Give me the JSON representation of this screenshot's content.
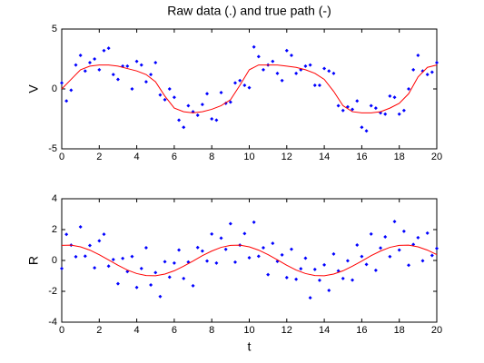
{
  "chart_data": [
    {
      "type": "scatter",
      "title": "Raw data (.) and true path (-)",
      "ylabel": "V",
      "xlim": [
        0,
        20
      ],
      "xticks": [
        0,
        2,
        4,
        6,
        8,
        10,
        12,
        14,
        16,
        18,
        20
      ],
      "ylim": [
        -5,
        5
      ],
      "yticks": [
        -5,
        0,
        5
      ],
      "grid": false,
      "series": [
        {
          "type": "scatter",
          "color": "#0000ff",
          "x": [
            0,
            0.25,
            0.5,
            0.75,
            1,
            1.25,
            1.5,
            1.75,
            2,
            2.25,
            2.5,
            2.75,
            3,
            3.25,
            3.5,
            3.75,
            4,
            4.25,
            4.5,
            4.75,
            5,
            5.25,
            5.5,
            5.75,
            6,
            6.25,
            6.5,
            6.75,
            7,
            7.25,
            7.5,
            7.75,
            8,
            8.25,
            8.5,
            8.75,
            9,
            9.25,
            9.5,
            9.75,
            10,
            10.25,
            10.5,
            10.75,
            11,
            11.25,
            11.5,
            11.75,
            12,
            12.25,
            12.5,
            12.75,
            13,
            13.25,
            13.5,
            13.75,
            14,
            14.25,
            14.5,
            14.75,
            15,
            15.25,
            15.5,
            15.75,
            16,
            16.25,
            16.5,
            16.75,
            17,
            17.25,
            17.5,
            17.75,
            18,
            18.25,
            18.5,
            18.75,
            19,
            19.25,
            19.5,
            19.75,
            20
          ],
          "values": [
            0.5,
            -1.0,
            -0.1,
            2.0,
            2.8,
            1.5,
            2.2,
            2.5,
            1.6,
            3.2,
            3.4,
            1.2,
            0.8,
            1.9,
            1.9,
            0.0,
            2.3,
            2.0,
            0.6,
            1.2,
            2.2,
            -0.5,
            -0.9,
            0.0,
            -0.7,
            -2.6,
            -3.2,
            -1.4,
            -1.9,
            -2.2,
            -1.3,
            -0.4,
            -2.5,
            -2.6,
            -0.3,
            -1.2,
            -1.1,
            0.5,
            0.7,
            0.3,
            0.1,
            3.5,
            2.7,
            1.6,
            2.0,
            2.3,
            1.3,
            0.7,
            3.2,
            2.8,
            1.3,
            1.6,
            1.9,
            2.0,
            0.3,
            0.3,
            1.7,
            1.5,
            1.3,
            -1.4,
            -1.8,
            -1.5,
            -1.7,
            -1.0,
            -3.2,
            -3.5,
            -1.4,
            -1.6,
            -2.0,
            -2.1,
            -0.6,
            -0.7,
            -2.1,
            -1.8,
            0.0,
            1.6,
            2.8,
            1.5,
            1.2,
            1.4,
            2.2
          ]
        },
        {
          "type": "line",
          "color": "#ff0000",
          "x": [
            0,
            0.5,
            1,
            1.5,
            2,
            2.5,
            3,
            3.5,
            4,
            4.5,
            5,
            5.5,
            6,
            6.5,
            7,
            7.5,
            8,
            8.5,
            9,
            9.5,
            10,
            10.5,
            11,
            11.5,
            12,
            12.5,
            13,
            13.5,
            14,
            14.5,
            15,
            15.5,
            16,
            16.5,
            17,
            17.5,
            18,
            18.5,
            19,
            19.5,
            20
          ],
          "values": [
            0.0,
            0.8,
            1.6,
            1.9,
            2.0,
            2.0,
            1.9,
            1.7,
            1.5,
            1.2,
            0.6,
            -0.6,
            -1.6,
            -1.9,
            -2.0,
            -1.9,
            -1.7,
            -1.4,
            -0.9,
            0.3,
            1.6,
            2.0,
            2.0,
            2.0,
            1.9,
            1.8,
            1.6,
            1.3,
            0.8,
            -0.2,
            -1.4,
            -1.9,
            -2.0,
            -2.0,
            -1.9,
            -1.6,
            -1.2,
            -0.4,
            1.0,
            1.8,
            2.0
          ]
        }
      ]
    },
    {
      "type": "scatter",
      "ylabel": "R",
      "xlabel": "t",
      "xlim": [
        0,
        20
      ],
      "xticks": [
        0,
        2,
        4,
        6,
        8,
        10,
        12,
        14,
        16,
        18,
        20
      ],
      "ylim": [
        -4,
        4
      ],
      "yticks": [
        -4,
        -2,
        0,
        2,
        4
      ],
      "grid": false,
      "series": [
        {
          "type": "scatter",
          "color": "#0000ff",
          "x": [
            0,
            0.25,
            0.5,
            0.75,
            1,
            1.25,
            1.5,
            1.75,
            2,
            2.25,
            2.5,
            2.75,
            3,
            3.25,
            3.5,
            3.75,
            4,
            4.25,
            4.5,
            4.75,
            5,
            5.25,
            5.5,
            5.75,
            6,
            6.25,
            6.5,
            6.75,
            7,
            7.25,
            7.5,
            7.75,
            8,
            8.25,
            8.5,
            8.75,
            9,
            9.25,
            9.5,
            9.75,
            10,
            10.25,
            10.5,
            10.75,
            11,
            11.25,
            11.5,
            11.75,
            12,
            12.25,
            12.5,
            12.75,
            13,
            13.25,
            13.5,
            13.75,
            14,
            14.25,
            14.5,
            14.75,
            15,
            15.25,
            15.5,
            15.75,
            16,
            16.25,
            16.5,
            16.75,
            17,
            17.25,
            17.5,
            17.75,
            18,
            18.25,
            18.5,
            18.75,
            19,
            19.25,
            19.5,
            19.75,
            20
          ],
          "values": [
            -0.52,
            1.69,
            0.99,
            0.24,
            2.18,
            0.28,
            0.97,
            -0.48,
            1.27,
            1.7,
            -0.37,
            0.06,
            -1.51,
            0.13,
            -0.72,
            0.26,
            -1.75,
            -0.52,
            0.82,
            -1.59,
            -0.79,
            -2.34,
            -0.08,
            -1.08,
            -0.17,
            0.68,
            -1.17,
            -0.1,
            -1.64,
            0.84,
            0.61,
            -0.04,
            1.71,
            -0.17,
            1.45,
            0.72,
            2.38,
            -0.11,
            0.99,
            1.74,
            0.18,
            2.48,
            0.27,
            0.82,
            -0.92,
            1.11,
            -0.06,
            0.36,
            -1.11,
            0.73,
            -1.22,
            -0.54,
            0.15,
            -2.42,
            -0.58,
            -1.29,
            -0.29,
            -1.94,
            0.42,
            -0.68,
            -1.17,
            -0.02,
            -1.27,
            1.0,
            0.26,
            -0.26,
            1.71,
            -0.64,
            0.81,
            1.53,
            0.25,
            2.52,
            0.68,
            1.89,
            -0.31,
            1.04,
            1.48,
            -0.02,
            1.77,
            0.32,
            0.78
          ]
        },
        {
          "type": "line",
          "color": "#ff0000",
          "x": [
            0,
            0.5,
            1,
            1.5,
            2,
            2.5,
            3,
            3.5,
            4,
            4.5,
            5,
            5.5,
            6,
            6.5,
            7,
            7.5,
            8,
            8.5,
            9,
            9.5,
            10,
            10.5,
            11,
            11.5,
            12,
            12.5,
            13,
            13.5,
            14,
            14.5,
            15,
            15.5,
            16,
            16.5,
            17,
            17.5,
            18,
            18.5,
            19,
            19.5,
            20
          ],
          "values": [
            0.98,
            0.99,
            0.88,
            0.67,
            0.37,
            0.03,
            -0.31,
            -0.62,
            -0.85,
            -0.98,
            -0.99,
            -0.88,
            -0.67,
            -0.37,
            -0.04,
            0.31,
            0.61,
            0.85,
            0.98,
            0.99,
            0.88,
            0.67,
            0.38,
            0.04,
            -0.31,
            -0.62,
            -0.85,
            -0.98,
            -0.99,
            -0.88,
            -0.67,
            -0.37,
            -0.04,
            0.31,
            0.61,
            0.85,
            0.98,
            0.99,
            0.88,
            0.67,
            0.38
          ]
        }
      ]
    }
  ]
}
